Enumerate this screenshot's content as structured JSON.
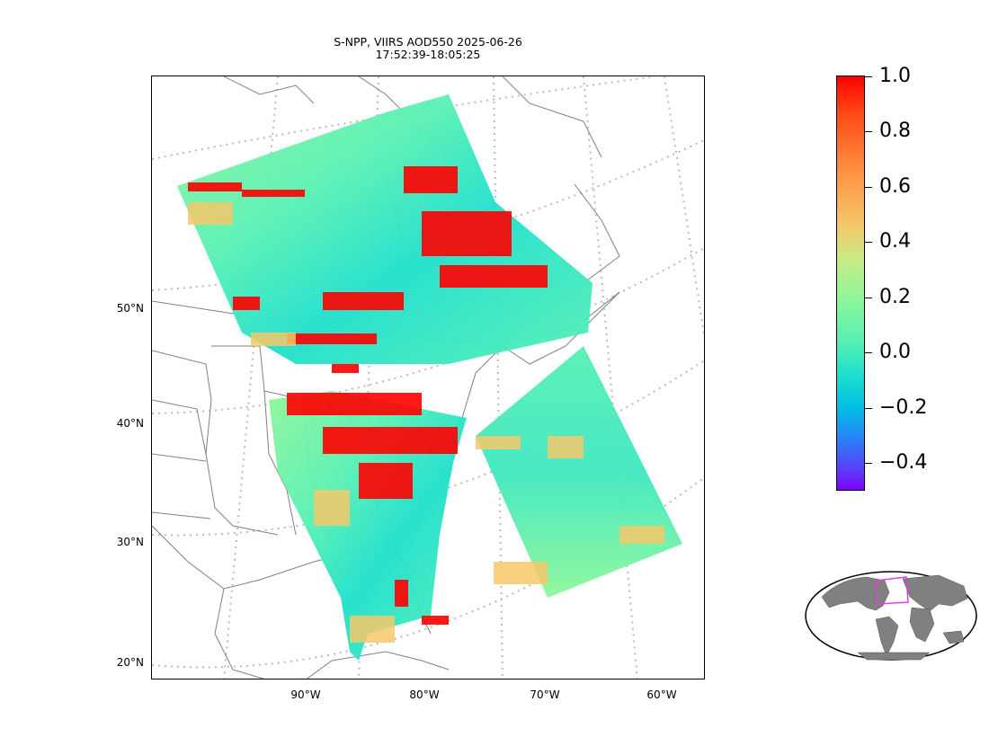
{
  "figure": {
    "title_line1": "S-NPP, VIIRS AOD550 2025-06-26",
    "title_line2": "17:52:39-18:05:25"
  },
  "map": {
    "projection": "conic",
    "gridline_style": "dotted gray",
    "lat_labels": [
      "50°N",
      "40°N",
      "30°N",
      "20°N"
    ],
    "lon_labels": [
      "90°W",
      "80°W",
      "70°W",
      "60°W"
    ],
    "coastline_color": "#808080",
    "data_field": "AOD550",
    "colormap": "rainbow"
  },
  "colorbar": {
    "min": -0.5,
    "max": 1.0,
    "ticks": [
      "1.0",
      "0.8",
      "0.6",
      "0.4",
      "0.2",
      "0.0",
      "−0.2",
      "−0.4"
    ],
    "colors": {
      "high": "#ff0000",
      "mid": "#8ef79a",
      "low": "#7d00ff"
    }
  },
  "inset": {
    "type": "world-globe-locator",
    "land_color": "#808080",
    "box_color": "#e040e0"
  }
}
